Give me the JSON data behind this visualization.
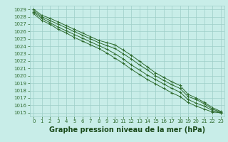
{
  "series": [
    {
      "x": [
        0,
        1,
        2,
        3,
        4,
        5,
        6,
        7,
        8,
        9,
        10,
        11,
        12,
        13,
        14,
        15,
        16,
        17,
        18,
        19,
        20,
        21,
        22,
        23
      ],
      "y": [
        1029.0,
        1028.2,
        1027.8,
        1027.3,
        1026.8,
        1026.3,
        1025.8,
        1025.3,
        1024.8,
        1024.5,
        1024.2,
        1023.5,
        1022.8,
        1022.0,
        1021.2,
        1020.4,
        1019.8,
        1019.2,
        1018.7,
        1017.5,
        1017.0,
        1016.4,
        1015.7,
        1015.2
      ]
    },
    {
      "x": [
        0,
        1,
        2,
        3,
        4,
        5,
        6,
        7,
        8,
        9,
        10,
        11,
        12,
        13,
        14,
        15,
        16,
        17,
        18,
        19,
        20,
        21,
        22,
        23
      ],
      "y": [
        1028.8,
        1028.0,
        1027.5,
        1027.0,
        1026.5,
        1026.0,
        1025.5,
        1025.0,
        1024.5,
        1024.1,
        1023.7,
        1023.0,
        1022.3,
        1021.5,
        1020.8,
        1020.0,
        1019.4,
        1018.8,
        1018.3,
        1017.2,
        1016.8,
        1016.2,
        1015.5,
        1015.1
      ]
    },
    {
      "x": [
        0,
        1,
        2,
        3,
        4,
        5,
        6,
        7,
        8,
        9,
        10,
        11,
        12,
        13,
        14,
        15,
        16,
        17,
        18,
        19,
        20,
        21,
        22,
        23
      ],
      "y": [
        1028.6,
        1027.8,
        1027.2,
        1026.6,
        1026.1,
        1025.6,
        1025.1,
        1024.6,
        1024.1,
        1023.6,
        1023.0,
        1022.3,
        1021.5,
        1020.8,
        1020.1,
        1019.5,
        1018.9,
        1018.3,
        1017.8,
        1016.8,
        1016.3,
        1015.9,
        1015.3,
        1015.0
      ]
    },
    {
      "x": [
        0,
        1,
        2,
        3,
        4,
        5,
        6,
        7,
        8,
        9,
        10,
        11,
        12,
        13,
        14,
        15,
        16,
        17,
        18,
        19,
        20,
        21,
        22,
        23
      ],
      "y": [
        1028.4,
        1027.5,
        1027.0,
        1026.3,
        1025.8,
        1025.2,
        1024.7,
        1024.2,
        1023.7,
        1023.1,
        1022.4,
        1021.7,
        1020.9,
        1020.2,
        1019.5,
        1018.9,
        1018.3,
        1017.7,
        1017.2,
        1016.4,
        1015.9,
        1015.5,
        1015.1,
        1015.0
      ]
    }
  ],
  "background_color": "#c8ede8",
  "grid_color": "#9ecec8",
  "line_color": "#2d6a2d",
  "xlabel": "Graphe pression niveau de la mer (hPa)",
  "xlabel_color": "#1a4a1a",
  "xlabel_fontsize": 7,
  "tick_fontsize": 5,
  "ylim": [
    1015,
    1029
  ],
  "xlim": [
    0,
    23
  ],
  "yticks": [
    1015,
    1016,
    1017,
    1018,
    1019,
    1020,
    1021,
    1022,
    1023,
    1024,
    1025,
    1026,
    1027,
    1028,
    1029
  ],
  "xticks": [
    0,
    1,
    2,
    3,
    4,
    5,
    6,
    7,
    8,
    9,
    10,
    11,
    12,
    13,
    14,
    15,
    16,
    17,
    18,
    19,
    20,
    21,
    22,
    23
  ]
}
